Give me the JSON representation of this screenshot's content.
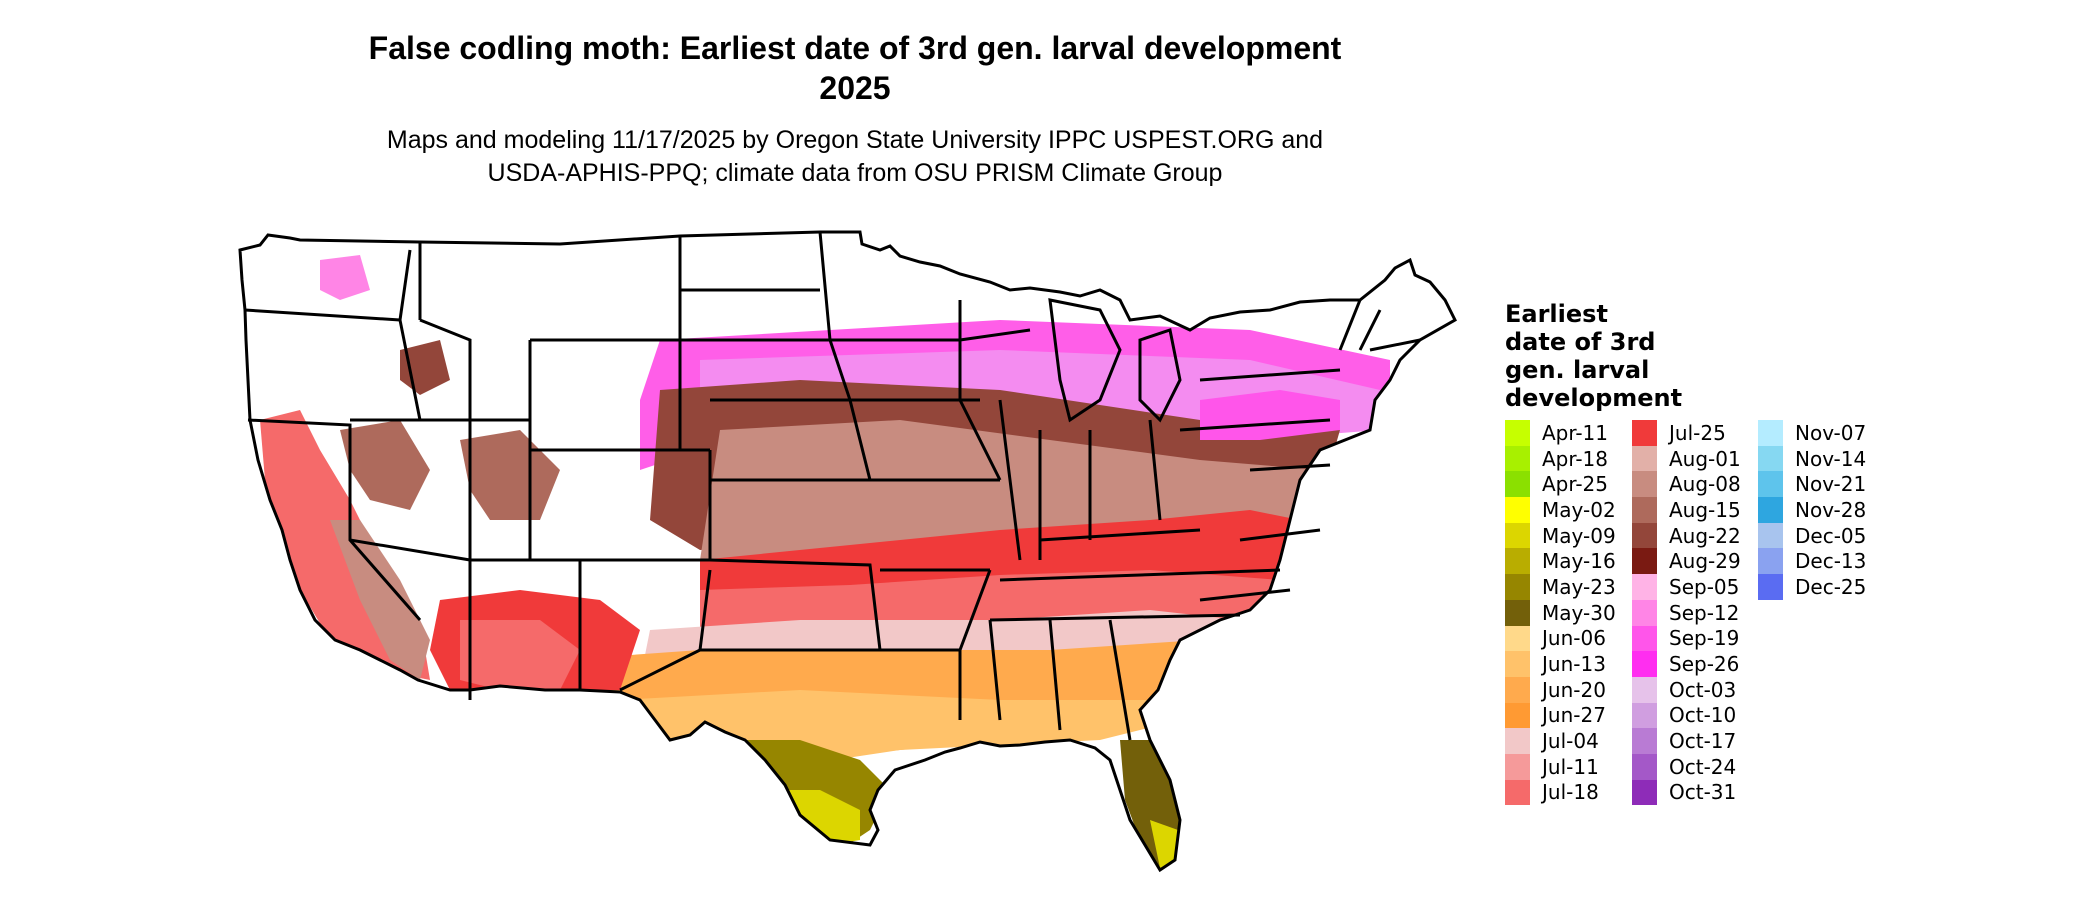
{
  "title": {
    "line1": "False codling moth: Earliest date of 3rd gen. larval development",
    "line2": "2025"
  },
  "subtitle": {
    "line1": "Maps and modeling 11/17/2025 by Oregon State University IPPC USPEST.ORG and",
    "line2": "USDA-APHIS-PPQ; climate data from OSU PRISM Climate Group"
  },
  "legend": {
    "title_lines": [
      "Earliest",
      "date of 3rd",
      "gen. larval",
      "development"
    ],
    "columns": [
      [
        {
          "label": "Apr-11",
          "color": "#c6ff00"
        },
        {
          "label": "Apr-18",
          "color": "#a8f000"
        },
        {
          "label": "Apr-25",
          "color": "#8be000"
        },
        {
          "label": "May-02",
          "color": "#ffff00"
        },
        {
          "label": "May-09",
          "color": "#dcd600"
        },
        {
          "label": "May-16",
          "color": "#b9ad00"
        },
        {
          "label": "May-23",
          "color": "#968600"
        },
        {
          "label": "May-30",
          "color": "#73600a"
        },
        {
          "label": "Jun-06",
          "color": "#ffd98a"
        },
        {
          "label": "Jun-13",
          "color": "#ffc26a"
        },
        {
          "label": "Jun-20",
          "color": "#ffaa4d"
        },
        {
          "label": "Jun-27",
          "color": "#ff9a33"
        },
        {
          "label": "Jul-04",
          "color": "#f2c8c8"
        },
        {
          "label": "Jul-11",
          "color": "#f59a9a"
        },
        {
          "label": "Jul-18",
          "color": "#f56a6a"
        }
      ],
      [
        {
          "label": "Jul-25",
          "color": "#f03a3a"
        },
        {
          "label": "Aug-01",
          "color": "#e2b0a8"
        },
        {
          "label": "Aug-08",
          "color": "#c88c80"
        },
        {
          "label": "Aug-15",
          "color": "#ae6a5c"
        },
        {
          "label": "Aug-22",
          "color": "#93463a"
        },
        {
          "label": "Aug-29",
          "color": "#7a1a12"
        },
        {
          "label": "Sep-05",
          "color": "#ffb3e6"
        },
        {
          "label": "Sep-12",
          "color": "#ff85e6"
        },
        {
          "label": "Sep-19",
          "color": "#ff55ea"
        },
        {
          "label": "Sep-26",
          "color": "#ff2ef0"
        },
        {
          "label": "Oct-03",
          "color": "#e6c2ea"
        },
        {
          "label": "Oct-10",
          "color": "#d09ee0"
        },
        {
          "label": "Oct-17",
          "color": "#b97bd4"
        },
        {
          "label": "Oct-24",
          "color": "#a458c8"
        },
        {
          "label": "Oct-31",
          "color": "#8e2cb8"
        }
      ],
      [
        {
          "label": "Nov-07",
          "color": "#b4ecff"
        },
        {
          "label": "Nov-14",
          "color": "#86d8f2"
        },
        {
          "label": "Nov-21",
          "color": "#5ec4ec"
        },
        {
          "label": "Nov-28",
          "color": "#2ea6e0"
        },
        {
          "label": "Dec-05",
          "color": "#a8c4ee"
        },
        {
          "label": "Dec-13",
          "color": "#8aa2f0"
        },
        {
          "label": "Dec-25",
          "color": "#5a6cf2"
        }
      ]
    ]
  }
}
